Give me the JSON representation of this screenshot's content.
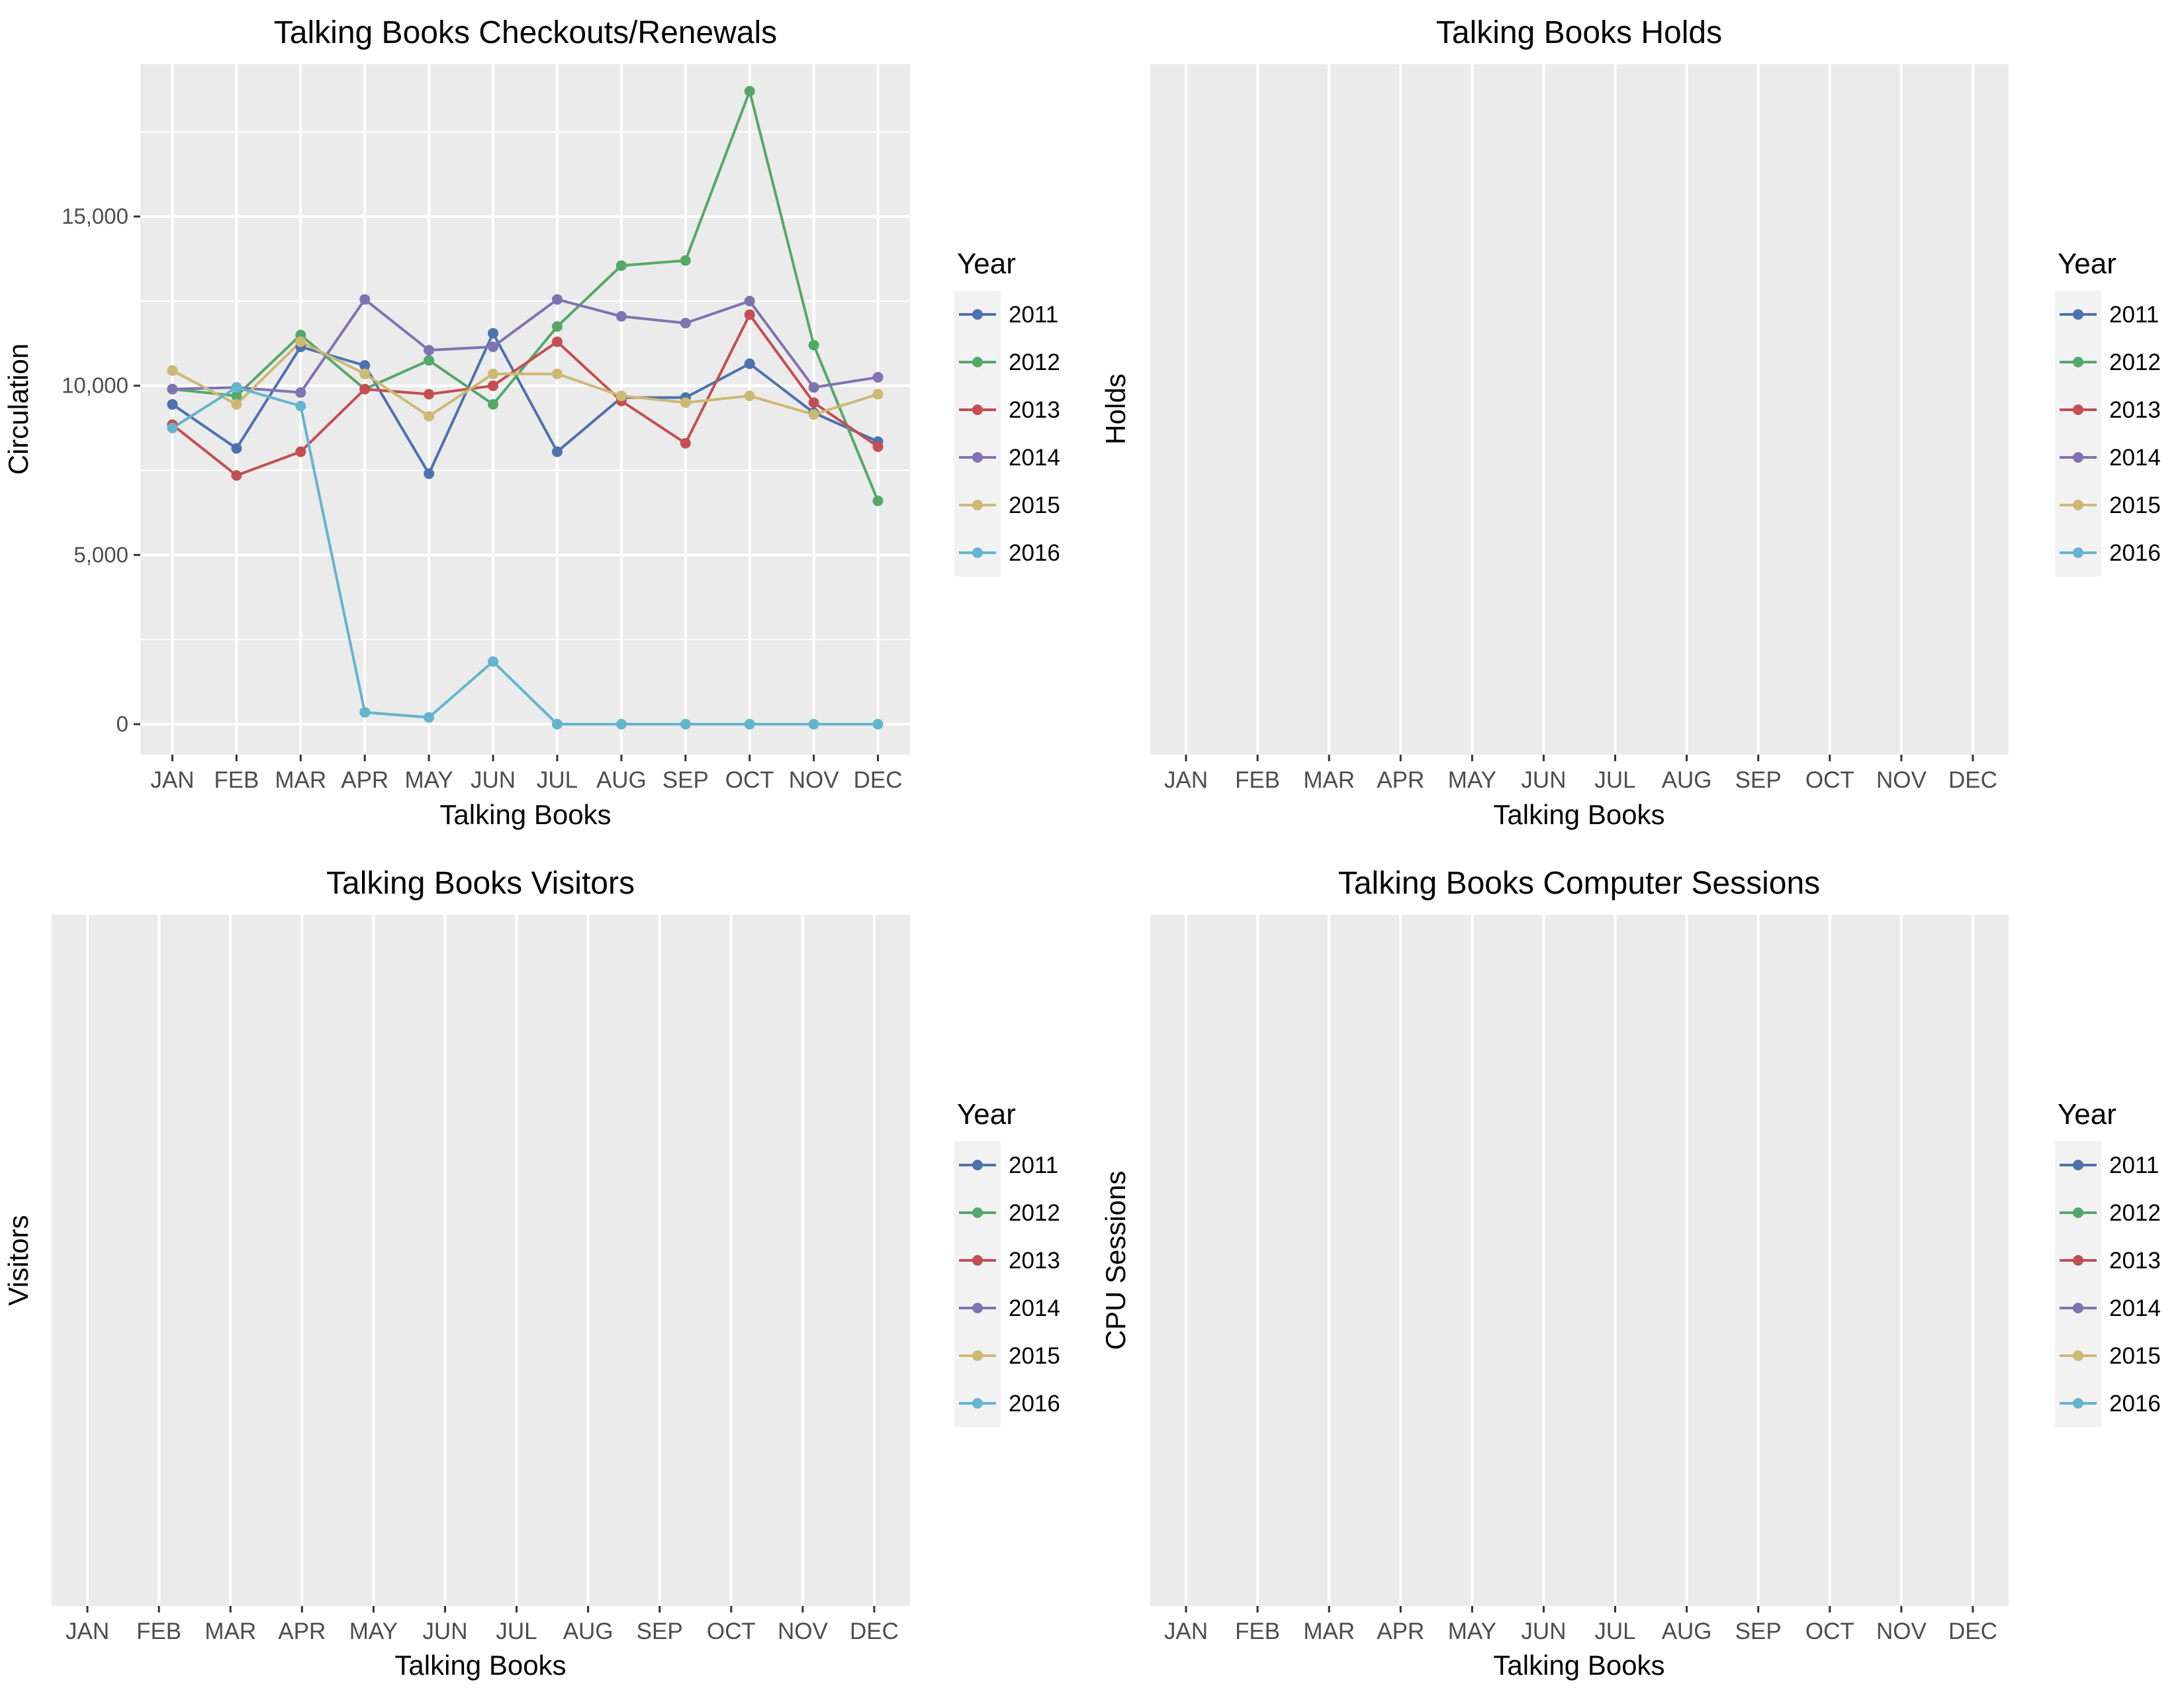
{
  "months": [
    "JAN",
    "FEB",
    "MAR",
    "APR",
    "MAY",
    "JUN",
    "JUL",
    "AUG",
    "SEP",
    "OCT",
    "NOV",
    "DEC"
  ],
  "legend": {
    "title": "Year",
    "entries": [
      {
        "name": "2011",
        "color": "#4c72b0"
      },
      {
        "name": "2012",
        "color": "#55a868"
      },
      {
        "name": "2013",
        "color": "#c44e52"
      },
      {
        "name": "2014",
        "color": "#8172b2"
      },
      {
        "name": "2015",
        "color": "#ccb974"
      },
      {
        "name": "2016",
        "color": "#64b5cd"
      }
    ]
  },
  "chart_data": [
    {
      "type": "line",
      "title": "Talking Books Checkouts/Renewals",
      "xlabel": "Talking Books",
      "ylabel": "Circulation",
      "x": [
        "JAN",
        "FEB",
        "MAR",
        "APR",
        "MAY",
        "JUN",
        "JUL",
        "AUG",
        "SEP",
        "OCT",
        "NOV",
        "DEC"
      ],
      "ylim": [
        -900,
        19500
      ],
      "yticks": [
        0,
        5000,
        10000,
        15000
      ],
      "ytick_labels": [
        "0",
        "5,000",
        "10,000",
        "15,000"
      ],
      "grid": true,
      "legend": "right",
      "series": [
        {
          "name": "2011",
          "values": [
            9450,
            8150,
            11150,
            10600,
            7400,
            11550,
            8050,
            9650,
            9650,
            10650,
            9200,
            8350
          ]
        },
        {
          "name": "2012",
          "values": [
            9900,
            9700,
            11500,
            9900,
            10750,
            9450,
            11750,
            13550,
            13700,
            18700,
            11200,
            6600
          ]
        },
        {
          "name": "2013",
          "values": [
            8850,
            7350,
            8050,
            9900,
            9750,
            10000,
            11300,
            9550,
            8300,
            12100,
            9500,
            8200
          ]
        },
        {
          "name": "2014",
          "values": [
            9900,
            9950,
            9800,
            12550,
            11050,
            11150,
            12550,
            12050,
            11850,
            12500,
            9950,
            10250
          ]
        },
        {
          "name": "2015",
          "values": [
            10450,
            9450,
            11300,
            10350,
            9100,
            10350,
            10350,
            9700,
            9500,
            9700,
            9150,
            9750
          ]
        },
        {
          "name": "2016",
          "values": [
            8750,
            9950,
            9400,
            350,
            200,
            1850,
            0,
            0,
            0,
            0,
            0,
            0
          ]
        }
      ]
    },
    {
      "type": "line",
      "title": "Talking Books Holds",
      "xlabel": "Talking Books",
      "ylabel": "Holds",
      "x": [
        "JAN",
        "FEB",
        "MAR",
        "APR",
        "MAY",
        "JUN",
        "JUL",
        "AUG",
        "SEP",
        "OCT",
        "NOV",
        "DEC"
      ],
      "grid": true,
      "legend": "right",
      "series": []
    },
    {
      "type": "line",
      "title": "Talking Books Visitors",
      "xlabel": "Talking Books",
      "ylabel": "Visitors",
      "x": [
        "JAN",
        "FEB",
        "MAR",
        "APR",
        "MAY",
        "JUN",
        "JUL",
        "AUG",
        "SEP",
        "OCT",
        "NOV",
        "DEC"
      ],
      "grid": true,
      "legend": "right",
      "series": []
    },
    {
      "type": "line",
      "title": "Talking Books Computer Sessions",
      "xlabel": "Talking Books",
      "ylabel": "CPU Sessions",
      "x": [
        "JAN",
        "FEB",
        "MAR",
        "APR",
        "MAY",
        "JUN",
        "JUL",
        "AUG",
        "SEP",
        "OCT",
        "NOV",
        "DEC"
      ],
      "grid": true,
      "legend": "right",
      "series": []
    }
  ]
}
